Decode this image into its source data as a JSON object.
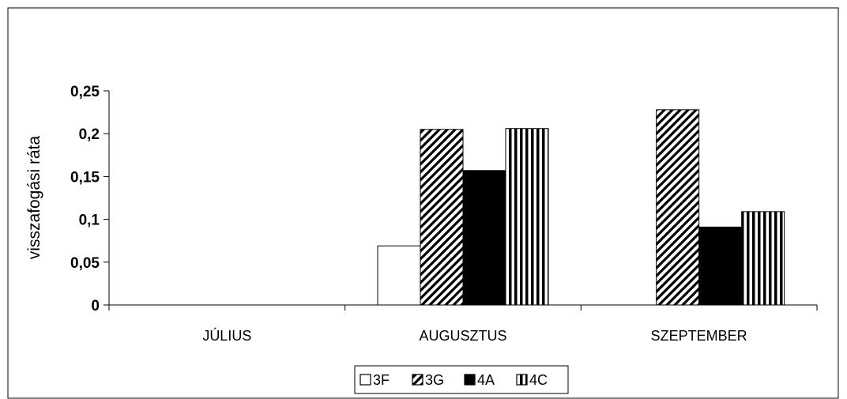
{
  "chart_data": {
    "type": "bar",
    "title": "",
    "xlabel": "",
    "ylabel": "visszafogási ráta",
    "categories": [
      "JÚLIUS",
      "AUGUSZTUS",
      "SZEPTEMBER"
    ],
    "ylim": [
      0,
      0.25
    ],
    "yticks": [
      0,
      0.05,
      0.1,
      0.15,
      0.2,
      0.25
    ],
    "ytick_labels": [
      "0",
      "0,05",
      "0,1",
      "0,15",
      "0,2",
      "0,25"
    ],
    "grid": false,
    "legend_position": "bottom",
    "series": [
      {
        "name": "3F",
        "pattern": "white",
        "values": [
          null,
          0.069,
          null
        ]
      },
      {
        "name": "3G",
        "pattern": "diagonal-hatch",
        "values": [
          null,
          0.205,
          0.228
        ]
      },
      {
        "name": "4A",
        "pattern": "solid-black",
        "values": [
          null,
          0.157,
          0.091
        ]
      },
      {
        "name": "4C",
        "pattern": "vertical-stripes",
        "values": [
          null,
          0.206,
          0.109
        ]
      }
    ]
  }
}
